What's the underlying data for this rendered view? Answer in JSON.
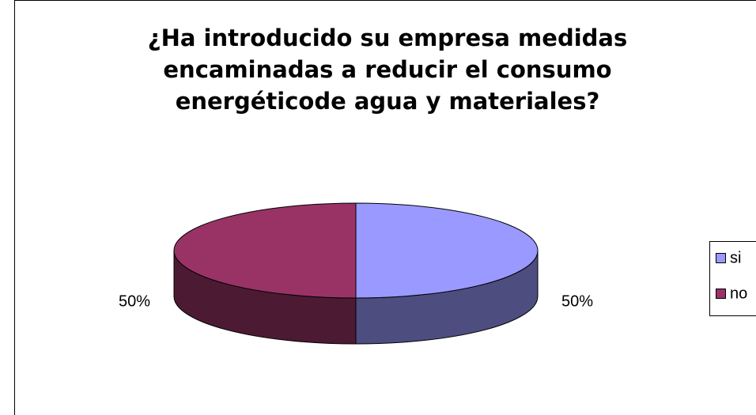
{
  "chart_data": {
    "type": "pie",
    "title": [
      "¿Ha introducido su empresa medidas",
      "encaminadas a reducir el consumo",
      "energéticode agua y materiales?"
    ],
    "categories": [
      "si",
      "no"
    ],
    "values": [
      50,
      50
    ],
    "value_labels": [
      "50%",
      "50%"
    ],
    "colors": [
      "#9999ff",
      "#993366"
    ],
    "legend": "right",
    "three_d": true
  }
}
